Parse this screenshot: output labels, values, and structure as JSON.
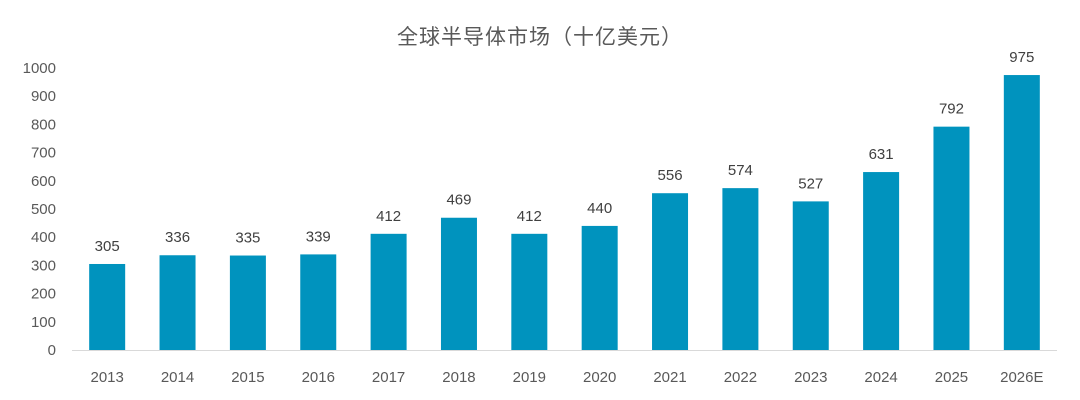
{
  "chart_data": {
    "type": "bar",
    "title": "全球半导体市场（十亿美元）",
    "categories": [
      "2013",
      "2014",
      "2015",
      "2016",
      "2017",
      "2018",
      "2019",
      "2020",
      "2021",
      "2022",
      "2023",
      "2024",
      "2025",
      "2026E"
    ],
    "values": [
      305,
      336,
      335,
      339,
      412,
      469,
      412,
      440,
      556,
      574,
      527,
      631,
      792,
      975
    ],
    "ylim": [
      0,
      1000
    ],
    "yticks": [
      0,
      100,
      200,
      300,
      400,
      500,
      600,
      700,
      800,
      900,
      1000
    ],
    "xlabel": "",
    "ylabel": "",
    "grid": false,
    "legend": "none",
    "bar_color": "#0093BE",
    "axis_color": "#D9D9D9",
    "text_color": "#595959"
  }
}
